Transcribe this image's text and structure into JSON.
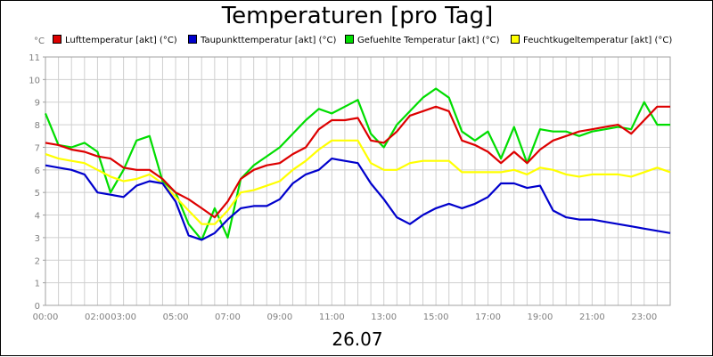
{
  "chart_data": {
    "type": "line",
    "title": "Temperaturen [pro Tag]",
    "ylabel": "°C",
    "xlabel": "26.07",
    "ylim": [
      0,
      11
    ],
    "y_ticks": [
      "0",
      "1",
      "2",
      "3",
      "4",
      "5",
      "6",
      "7",
      "8",
      "9",
      "10",
      "11"
    ],
    "x_range_hours": [
      0,
      24
    ],
    "x_ticks": [
      {
        "hour": 0,
        "label": "00:00"
      },
      {
        "hour": 2,
        "label": "02:00"
      },
      {
        "hour": 3,
        "label": "03:00"
      },
      {
        "hour": 5,
        "label": "05:00"
      },
      {
        "hour": 7,
        "label": "07:00"
      },
      {
        "hour": 9,
        "label": "09:00"
      },
      {
        "hour": 11,
        "label": "11:00"
      },
      {
        "hour": 13,
        "label": "13:00"
      },
      {
        "hour": 15,
        "label": "15:00"
      },
      {
        "hour": 17,
        "label": "17:00"
      },
      {
        "hour": 19,
        "label": "19:00"
      },
      {
        "hour": 21,
        "label": "21:00"
      },
      {
        "hour": 23,
        "label": "23:00"
      }
    ],
    "grid": true,
    "legend_position": "top",
    "series": [
      {
        "name": "Lufttemperatur [akt] (°C)",
        "color": "#dd0000",
        "x": [
          0,
          0.5,
          1,
          1.5,
          2,
          2.5,
          3,
          3.5,
          4,
          4.5,
          5,
          5.5,
          6,
          6.5,
          7,
          7.5,
          8,
          8.5,
          9,
          9.5,
          10,
          10.5,
          11,
          11.5,
          12,
          12.5,
          13,
          13.5,
          14,
          14.5,
          15,
          15.5,
          16,
          16.5,
          17,
          17.5,
          18,
          18.5,
          19,
          19.5,
          20,
          20.5,
          21,
          21.5,
          22,
          22.5,
          23,
          23.5,
          24
        ],
        "values": [
          7.2,
          7.1,
          6.9,
          6.8,
          6.6,
          6.5,
          6.1,
          6.0,
          6.0,
          5.6,
          5.0,
          4.7,
          4.3,
          3.9,
          4.6,
          5.6,
          6.0,
          6.2,
          6.3,
          6.7,
          7.0,
          7.8,
          8.2,
          8.2,
          8.3,
          7.3,
          7.2,
          7.7,
          8.4,
          8.6,
          8.8,
          8.6,
          7.3,
          7.1,
          6.8,
          6.3,
          6.8,
          6.3,
          6.9,
          7.3,
          7.5,
          7.7,
          7.8,
          7.9,
          8.0,
          7.6,
          8.2,
          8.8,
          8.8
        ]
      },
      {
        "name": "Taupunkttemperatur [akt] (°C)",
        "color": "#0000cc",
        "x": [
          0,
          0.5,
          1,
          1.5,
          2,
          2.5,
          3,
          3.5,
          4,
          4.5,
          5,
          5.5,
          6,
          6.5,
          7,
          7.5,
          8,
          8.5,
          9,
          9.5,
          10,
          10.5,
          11,
          11.5,
          12,
          12.5,
          13,
          13.5,
          14,
          14.5,
          15,
          15.5,
          16,
          16.5,
          17,
          17.5,
          18,
          18.5,
          19,
          19.5,
          20,
          20.5,
          21,
          21.5,
          22,
          22.5,
          23,
          23.5,
          24
        ],
        "values": [
          6.2,
          6.1,
          6.0,
          5.8,
          5.0,
          4.9,
          4.8,
          5.3,
          5.5,
          5.4,
          4.6,
          3.1,
          2.9,
          3.2,
          3.8,
          4.3,
          4.4,
          4.4,
          4.7,
          5.4,
          5.8,
          6.0,
          6.5,
          6.4,
          6.3,
          5.4,
          4.7,
          3.9,
          3.6,
          4.0,
          4.3,
          4.5,
          4.3,
          4.5,
          4.8,
          5.4,
          5.4,
          5.2,
          5.3,
          4.2,
          3.9,
          3.8,
          3.8,
          3.7,
          3.6,
          3.5,
          3.4,
          3.3,
          3.2
        ]
      },
      {
        "name": "Gefuehlte Temperatur [akt] (°C)",
        "color": "#00dd00",
        "x": [
          0,
          0.5,
          1,
          1.5,
          2,
          2.5,
          3,
          3.5,
          4,
          4.5,
          5,
          5.5,
          6,
          6.5,
          7,
          7.5,
          8,
          8.5,
          9,
          9.5,
          10,
          10.5,
          11,
          11.5,
          12,
          12.5,
          13,
          13.5,
          14,
          14.5,
          15,
          15.5,
          16,
          16.5,
          17,
          17.5,
          18,
          18.5,
          19,
          19.5,
          20,
          20.5,
          21,
          21.5,
          22,
          22.5,
          23,
          23.5,
          24
        ],
        "values": [
          8.5,
          7.1,
          7.0,
          7.2,
          6.8,
          5.0,
          6.0,
          7.3,
          7.5,
          5.5,
          5.0,
          3.6,
          2.9,
          4.3,
          3.0,
          5.6,
          6.2,
          6.6,
          7.0,
          7.6,
          8.2,
          8.7,
          8.5,
          8.8,
          9.1,
          7.6,
          7.0,
          8.0,
          8.6,
          9.2,
          9.6,
          9.2,
          7.7,
          7.3,
          7.7,
          6.5,
          7.9,
          6.3,
          7.8,
          7.7,
          7.7,
          7.5,
          7.7,
          7.8,
          7.9,
          7.8,
          9.0,
          8.0,
          8.0
        ]
      },
      {
        "name": "Feuchtkugeltemperatur [akt] (°C)",
        "color": "#ffff00",
        "x": [
          0,
          0.5,
          1,
          1.5,
          2,
          2.5,
          3,
          3.5,
          4,
          4.5,
          5,
          5.5,
          6,
          6.5,
          7,
          7.5,
          8,
          8.5,
          9,
          9.5,
          10,
          10.5,
          11,
          11.5,
          12,
          12.5,
          13,
          13.5,
          14,
          14.5,
          15,
          15.5,
          16,
          16.5,
          17,
          17.5,
          18,
          18.5,
          19,
          19.5,
          20,
          20.5,
          21,
          21.5,
          22,
          22.5,
          23,
          23.5,
          24
        ],
        "values": [
          6.7,
          6.5,
          6.4,
          6.3,
          6.0,
          5.7,
          5.5,
          5.6,
          5.8,
          5.4,
          4.8,
          4.2,
          3.6,
          3.6,
          4.2,
          5.0,
          5.1,
          5.3,
          5.5,
          6.0,
          6.4,
          6.9,
          7.3,
          7.3,
          7.3,
          6.3,
          6.0,
          6.0,
          6.3,
          6.4,
          6.4,
          6.4,
          5.9,
          5.9,
          5.9,
          5.9,
          6.0,
          5.8,
          6.1,
          6.0,
          5.8,
          5.7,
          5.8,
          5.8,
          5.8,
          5.7,
          5.9,
          6.1,
          5.9
        ]
      }
    ]
  }
}
